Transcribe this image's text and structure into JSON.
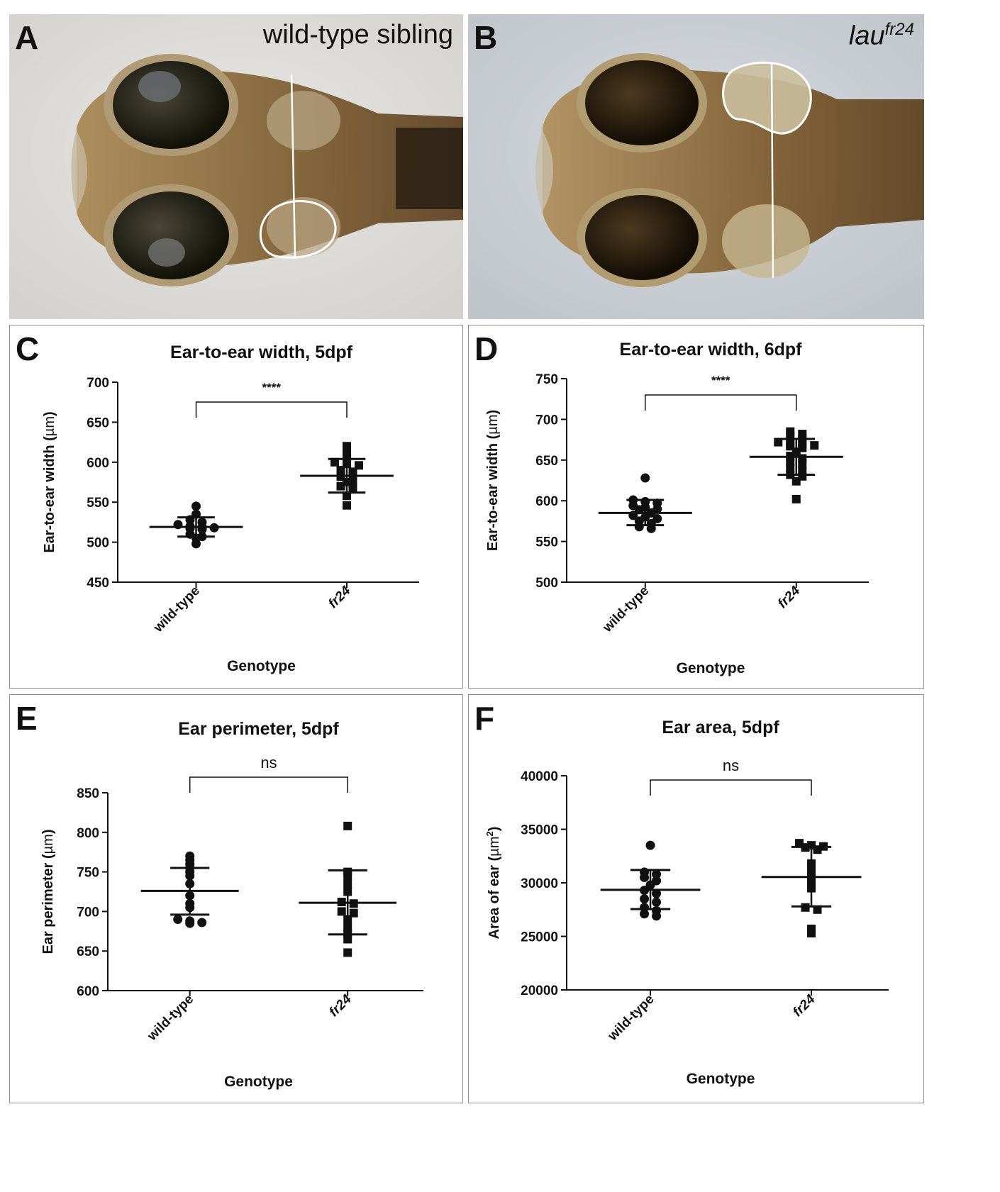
{
  "photos": [
    {
      "letter": "A",
      "label": "wild-type sibling",
      "label_base": "",
      "label_sup": ""
    },
    {
      "letter": "B",
      "label": "",
      "label_base": "lau",
      "label_sup": "fr24"
    }
  ],
  "chart_data": [
    {
      "type": "scatter",
      "panel": "C",
      "title": "Ear-to-ear width, 5dpf",
      "xlabel": "Genotype",
      "ylabel_prefix": "Ear-to-ear width (",
      "ylabel_unit": "µm",
      "ylabel_sup": "",
      "ylabel_suffix": ")",
      "ylim": [
        450,
        700
      ],
      "yticks": [
        450,
        500,
        550,
        600,
        650,
        700
      ],
      "categories": [
        "wild-type",
        "fr24"
      ],
      "significance": "****",
      "series": [
        {
          "category": "wild-type",
          "marker": "circle",
          "mean": 519,
          "sd_low": 507,
          "sd_high": 531,
          "points": [
            545,
            535,
            528,
            525,
            522,
            520,
            519,
            518,
            517,
            516,
            510,
            507,
            505,
            498
          ]
        },
        {
          "category": "fr24",
          "marker": "square",
          "mean": 583,
          "sd_low": 562,
          "sd_high": 604,
          "points": [
            620,
            610,
            600,
            598,
            596,
            590,
            588,
            582,
            578,
            575,
            570,
            568,
            558,
            546
          ]
        }
      ]
    },
    {
      "type": "scatter",
      "panel": "D",
      "title": "Ear-to-ear width, 6dpf",
      "xlabel": "Genotype",
      "ylabel_prefix": "Ear-to-ear width (",
      "ylabel_unit": "µm",
      "ylabel_sup": "",
      "ylabel_suffix": ")",
      "ylim": [
        500,
        750
      ],
      "yticks": [
        500,
        550,
        600,
        650,
        700,
        750
      ],
      "categories": [
        "wild-type",
        "fr24"
      ],
      "significance": "****",
      "series": [
        {
          "category": "wild-type",
          "marker": "circle",
          "mean": 585,
          "sd_low": 570,
          "sd_high": 601,
          "points": [
            628,
            601,
            599,
            597,
            594,
            592,
            590,
            589,
            585,
            582,
            580,
            578,
            575,
            572,
            568,
            566
          ]
        },
        {
          "category": "fr24",
          "marker": "square",
          "mean": 654,
          "sd_low": 632,
          "sd_high": 676,
          "points": [
            685,
            682,
            680,
            676,
            672,
            670,
            670,
            668,
            667,
            665,
            660,
            655,
            652,
            648,
            645,
            640,
            637,
            632,
            630,
            624,
            602
          ]
        }
      ]
    },
    {
      "type": "scatter",
      "panel": "E",
      "title": "Ear perimeter, 5dpf",
      "xlabel": "Genotype",
      "ylabel_prefix": "Ear perimeter (",
      "ylabel_unit": "µm",
      "ylabel_sup": "",
      "ylabel_suffix": ")",
      "ylim": [
        600,
        850
      ],
      "yticks": [
        600,
        650,
        700,
        750,
        800,
        850
      ],
      "categories": [
        "wild-type",
        "fr24"
      ],
      "significance": "ns",
      "series": [
        {
          "category": "wild-type",
          "marker": "circle",
          "mean": 726,
          "sd_low": 696,
          "sd_high": 755,
          "points": [
            770,
            765,
            760,
            755,
            750,
            745,
            735,
            720,
            710,
            705,
            690,
            688,
            686,
            685
          ]
        },
        {
          "category": "fr24",
          "marker": "square",
          "mean": 711,
          "sd_low": 671,
          "sd_high": 752,
          "points": [
            808,
            750,
            745,
            735,
            725,
            712,
            710,
            700,
            698,
            690,
            680,
            672,
            665,
            648
          ]
        }
      ]
    },
    {
      "type": "scatter",
      "panel": "F",
      "title": "Ear area, 5dpf",
      "xlabel": "Genotype",
      "ylabel_prefix": "Area of ear (",
      "ylabel_unit": "µm",
      "ylabel_sup": "2",
      "ylabel_suffix": ")",
      "ylim": [
        20000,
        40000
      ],
      "yticks": [
        20000,
        25000,
        30000,
        35000,
        40000
      ],
      "categories": [
        "wild-type",
        "fr24"
      ],
      "significance": "ns",
      "series": [
        {
          "category": "wild-type",
          "marker": "circle",
          "mean": 29350,
          "sd_low": 27550,
          "sd_high": 31200,
          "points": [
            33500,
            31000,
            30800,
            30500,
            30200,
            29800,
            29300,
            29000,
            28500,
            28200,
            27700,
            27400,
            27100,
            26900
          ]
        },
        {
          "category": "fr24",
          "marker": "square",
          "mean": 30550,
          "sd_low": 27800,
          "sd_high": 33350,
          "points": [
            33700,
            33500,
            33400,
            33300,
            33100,
            31800,
            31100,
            30400,
            30000,
            29500,
            27700,
            27500,
            25700,
            25300
          ]
        }
      ]
    }
  ]
}
